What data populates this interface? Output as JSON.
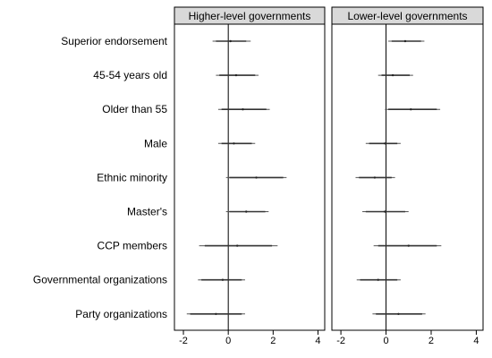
{
  "chart_data": {
    "type": "coefficient-plot",
    "title": "",
    "xlabel": "",
    "ylabel": "",
    "xlim": [
      -2.4,
      4.3
    ],
    "xticks": [
      -2,
      0,
      2,
      4
    ],
    "tick_labels": [
      "-2",
      "0",
      "2",
      "4"
    ],
    "reference_line": 0,
    "grid": false,
    "categories": [
      "Superior endorsement",
      "45-54 years old",
      "Older than 55",
      "Male",
      "Ethnic minority",
      "Master's",
      "CCP members",
      "Governmental organizations",
      "Party organizations"
    ],
    "panels": [
      {
        "name": "Higher-level governments",
        "estimates": [
          {
            "point": 0.1,
            "low": -0.7,
            "high": 1.0,
            "inner_low": -0.55,
            "inner_high": 0.8
          },
          {
            "point": 0.35,
            "low": -0.55,
            "high": 1.35,
            "inner_low": -0.4,
            "inner_high": 1.2
          },
          {
            "point": 0.65,
            "low": -0.45,
            "high": 1.85,
            "inner_low": -0.3,
            "inner_high": 1.7
          },
          {
            "point": 0.25,
            "low": -0.45,
            "high": 1.2,
            "inner_low": -0.3,
            "inner_high": 1.05
          },
          {
            "point": 1.25,
            "low": -0.1,
            "high": 2.6,
            "inner_low": 0.05,
            "inner_high": 2.45
          },
          {
            "point": 0.8,
            "low": -0.1,
            "high": 1.8,
            "inner_low": 0.05,
            "inner_high": 1.65
          },
          {
            "point": 0.4,
            "low": -1.3,
            "high": 2.2,
            "inner_low": -1.05,
            "inner_high": 1.95
          },
          {
            "point": -0.25,
            "low": -1.35,
            "high": 0.75,
            "inner_low": -1.2,
            "inner_high": 0.6
          },
          {
            "point": -0.55,
            "low": -1.85,
            "high": 0.75,
            "inner_low": -1.7,
            "inner_high": 0.6
          }
        ]
      },
      {
        "name": "Lower-level governments",
        "estimates": [
          {
            "point": 0.85,
            "low": 0.1,
            "high": 1.7,
            "inner_low": 0.25,
            "inner_high": 1.55
          },
          {
            "point": 0.3,
            "low": -0.35,
            "high": 1.2,
            "inner_low": -0.2,
            "inner_high": 1.05
          },
          {
            "point": 1.1,
            "low": -0.05,
            "high": 2.4,
            "inner_low": 0.1,
            "inner_high": 2.25
          },
          {
            "point": -0.05,
            "low": -0.9,
            "high": 0.65,
            "inner_low": -0.75,
            "inner_high": 0.5
          },
          {
            "point": -0.5,
            "low": -1.35,
            "high": 0.4,
            "inner_low": -1.2,
            "inner_high": 0.25
          },
          {
            "point": -0.05,
            "low": -1.05,
            "high": 1.0,
            "inner_low": -0.9,
            "inner_high": 0.85
          },
          {
            "point": 1.0,
            "low": -0.55,
            "high": 2.45,
            "inner_low": -0.35,
            "inner_high": 2.25
          },
          {
            "point": -0.35,
            "low": -1.3,
            "high": 0.65,
            "inner_low": -1.15,
            "inner_high": 0.5
          },
          {
            "point": 0.55,
            "low": -0.6,
            "high": 1.75,
            "inner_low": -0.45,
            "inner_high": 1.6
          }
        ]
      }
    ]
  }
}
